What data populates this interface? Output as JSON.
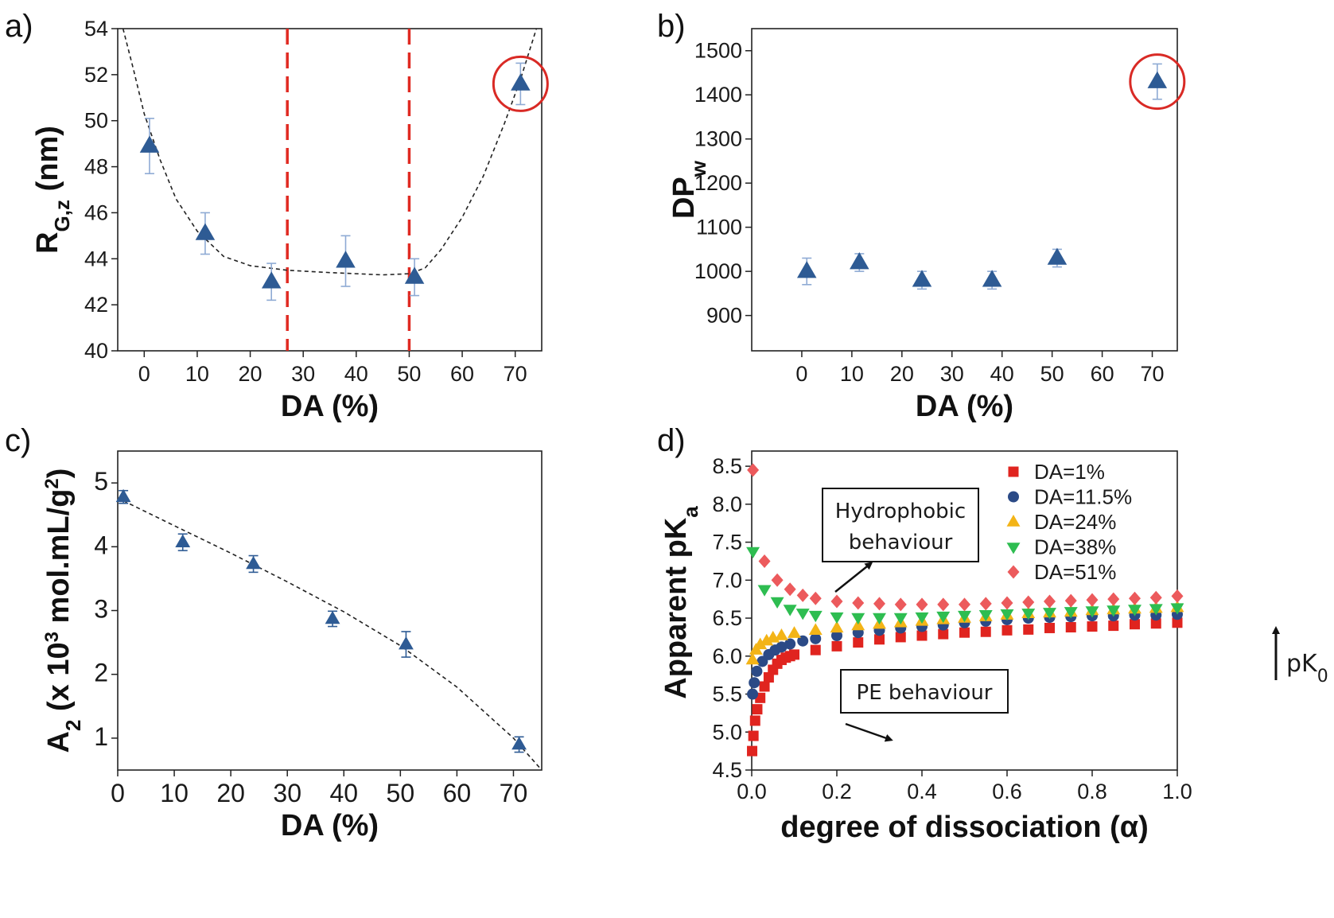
{
  "chart_data": [
    {
      "panel": "a)",
      "type": "scatter",
      "xlabel": "DA (%)",
      "ylabel_main": "R",
      "ylabel_sub": "G,z",
      "ylabel_suffix": " (nm)",
      "xlim": [
        -5,
        75
      ],
      "ylim": [
        40,
        54
      ],
      "xticks": [
        0,
        10,
        20,
        30,
        40,
        50,
        60,
        70
      ],
      "yticks": [
        40,
        42,
        44,
        46,
        48,
        50,
        52,
        54
      ],
      "points": [
        {
          "x": 1,
          "y": 48.9,
          "err": 1.2
        },
        {
          "x": 11.5,
          "y": 45.1,
          "err": 0.9
        },
        {
          "x": 24,
          "y": 43.0,
          "err": 0.8
        },
        {
          "x": 38,
          "y": 43.9,
          "err": 1.1
        },
        {
          "x": 51,
          "y": 43.2,
          "err": 0.8
        },
        {
          "x": 71,
          "y": 51.6,
          "err": 0.9
        }
      ],
      "fit_curve": [
        [
          -4,
          54
        ],
        [
          -2,
          52.2
        ],
        [
          0,
          50.3
        ],
        [
          3,
          48.3
        ],
        [
          6,
          46.6
        ],
        [
          10,
          45.2
        ],
        [
          15,
          44.1
        ],
        [
          20,
          43.7
        ],
        [
          27,
          43.5
        ],
        [
          35,
          43.4
        ],
        [
          45,
          43.3
        ],
        [
          50,
          43.35
        ],
        [
          53,
          43.6
        ],
        [
          56,
          44.4
        ],
        [
          60,
          45.8
        ],
        [
          64,
          47.6
        ],
        [
          68,
          49.9
        ],
        [
          71,
          51.8
        ],
        [
          74,
          54
        ]
      ],
      "dashed_vlines": [
        27,
        50
      ],
      "highlight_circle": {
        "x": 71,
        "y": 51.6
      },
      "colors": {
        "marker": "#2e5b94",
        "errorbar": "#8eaad4",
        "vline": "#e02a22",
        "circle": "#d92a25",
        "fit": "#222222"
      }
    },
    {
      "panel": "b)",
      "type": "scatter",
      "xlabel": "DA (%)",
      "ylabel_main": "DP",
      "ylabel_sub": "w",
      "ylabel_suffix": "",
      "xlim": [
        -10,
        75
      ],
      "ylim": [
        820,
        1550
      ],
      "xticks": [
        0,
        10,
        20,
        30,
        40,
        50,
        60,
        70
      ],
      "yticks": [
        900,
        1000,
        1100,
        1200,
        1300,
        1400,
        1500
      ],
      "points": [
        {
          "x": 1,
          "y": 1000,
          "err": 30
        },
        {
          "x": 11.5,
          "y": 1020,
          "err": 20
        },
        {
          "x": 24,
          "y": 980,
          "err": 20
        },
        {
          "x": 38,
          "y": 980,
          "err": 20
        },
        {
          "x": 51,
          "y": 1030,
          "err": 20
        },
        {
          "x": 71,
          "y": 1430,
          "err": 40
        }
      ],
      "highlight_circle": {
        "x": 71,
        "y": 1430
      },
      "colors": {
        "marker": "#2e5b94",
        "errorbar": "#8eaad4",
        "circle": "#d92a25"
      }
    },
    {
      "panel": "c)",
      "type": "scatter",
      "xlabel": "DA (%)",
      "ylabel_main": "A",
      "ylabel_sub": "2",
      "ylabel_mid": " (x 10",
      "ylabel_sup": "3",
      "ylabel_end": " mol.mL/g",
      "ylabel_sup2": "2",
      "ylabel_close": ")",
      "xlim": [
        0,
        75
      ],
      "ylim": [
        0.5,
        5.5
      ],
      "xticks": [
        0,
        10,
        20,
        30,
        40,
        50,
        60,
        70
      ],
      "yticks": [
        1,
        2,
        3,
        4,
        5
      ],
      "points": [
        {
          "x": 1,
          "y": 4.78,
          "err": 0.1
        },
        {
          "x": 11.5,
          "y": 4.07,
          "err": 0.13
        },
        {
          "x": 24,
          "y": 3.73,
          "err": 0.13
        },
        {
          "x": 38,
          "y": 2.87,
          "err": 0.12
        },
        {
          "x": 51,
          "y": 2.47,
          "err": 0.2
        },
        {
          "x": 71,
          "y": 0.9,
          "err": 0.12
        }
      ],
      "fit_curve": [
        [
          1,
          4.72
        ],
        [
          10,
          4.33
        ],
        [
          20,
          3.9
        ],
        [
          30,
          3.45
        ],
        [
          40,
          2.98
        ],
        [
          50,
          2.45
        ],
        [
          60,
          1.8
        ],
        [
          70,
          1.0
        ],
        [
          75,
          0.5
        ]
      ],
      "colors": {
        "marker": "#2e5b94",
        "errorbar": "#2e5b94",
        "fit": "#222222"
      }
    },
    {
      "panel": "d)",
      "type": "scatter",
      "xlabel": "degree of dissociation (α)",
      "ylabel_main": "Apparent pK",
      "ylabel_sub": "a",
      "xlim": [
        0,
        1.0
      ],
      "ylim": [
        4.5,
        8.7
      ],
      "xticks": [
        0.0,
        0.2,
        0.4,
        0.6,
        0.8,
        1.0
      ],
      "xticklabels": [
        "0.0",
        "0.2",
        "0.4",
        "0.6",
        "0.8",
        "1.0"
      ],
      "yticks": [
        4.5,
        5.0,
        5.5,
        6.0,
        6.5,
        7.0,
        7.5,
        8.0,
        8.5
      ],
      "yticklabels": [
        "4.5",
        "5.0",
        "5.5",
        "6.0",
        "6.5",
        "7.0",
        "7.5",
        "8.0",
        "8.5"
      ],
      "series": [
        {
          "name": "DA=1%",
          "marker": "square",
          "color": "#e0241f",
          "points": [
            [
              0.001,
              4.75
            ],
            [
              0.004,
              4.95
            ],
            [
              0.008,
              5.15
            ],
            [
              0.013,
              5.3
            ],
            [
              0.02,
              5.45
            ],
            [
              0.03,
              5.6
            ],
            [
              0.04,
              5.72
            ],
            [
              0.05,
              5.82
            ],
            [
              0.06,
              5.9
            ],
            [
              0.07,
              5.95
            ],
            [
              0.08,
              5.98
            ],
            [
              0.09,
              6.0
            ],
            [
              0.1,
              6.02
            ],
            [
              0.15,
              6.08
            ],
            [
              0.2,
              6.13
            ],
            [
              0.25,
              6.18
            ],
            [
              0.3,
              6.22
            ],
            [
              0.35,
              6.25
            ],
            [
              0.4,
              6.27
            ],
            [
              0.45,
              6.29
            ],
            [
              0.5,
              6.31
            ],
            [
              0.55,
              6.32
            ],
            [
              0.6,
              6.34
            ],
            [
              0.65,
              6.35
            ],
            [
              0.7,
              6.37
            ],
            [
              0.75,
              6.38
            ],
            [
              0.8,
              6.39
            ],
            [
              0.85,
              6.4
            ],
            [
              0.9,
              6.42
            ],
            [
              0.95,
              6.43
            ],
            [
              1.0,
              6.44
            ]
          ]
        },
        {
          "name": "DA=11.5%",
          "marker": "circle",
          "color": "#2b4a86",
          "points": [
            [
              0.002,
              5.5
            ],
            [
              0.006,
              5.65
            ],
            [
              0.012,
              5.8
            ],
            [
              0.025,
              5.93
            ],
            [
              0.04,
              6.02
            ],
            [
              0.055,
              6.08
            ],
            [
              0.07,
              6.12
            ],
            [
              0.09,
              6.16
            ],
            [
              0.12,
              6.2
            ],
            [
              0.15,
              6.23
            ],
            [
              0.2,
              6.27
            ],
            [
              0.25,
              6.31
            ],
            [
              0.3,
              6.34
            ],
            [
              0.35,
              6.37
            ],
            [
              0.4,
              6.39
            ],
            [
              0.45,
              6.41
            ],
            [
              0.5,
              6.44
            ],
            [
              0.55,
              6.46
            ],
            [
              0.6,
              6.48
            ],
            [
              0.65,
              6.5
            ],
            [
              0.7,
              6.51
            ],
            [
              0.75,
              6.52
            ],
            [
              0.8,
              6.53
            ],
            [
              0.85,
              6.53
            ],
            [
              0.9,
              6.54
            ],
            [
              0.95,
              6.54
            ],
            [
              1.0,
              6.55
            ]
          ]
        },
        {
          "name": "DA=24%",
          "marker": "triangle-up",
          "color": "#f3b417",
          "points": [
            [
              0.002,
              5.95
            ],
            [
              0.01,
              6.08
            ],
            [
              0.02,
              6.15
            ],
            [
              0.035,
              6.2
            ],
            [
              0.05,
              6.24
            ],
            [
              0.07,
              6.27
            ],
            [
              0.1,
              6.3
            ],
            [
              0.15,
              6.34
            ],
            [
              0.2,
              6.37
            ],
            [
              0.25,
              6.4
            ],
            [
              0.3,
              6.42
            ],
            [
              0.35,
              6.44
            ],
            [
              0.4,
              6.46
            ],
            [
              0.45,
              6.48
            ],
            [
              0.5,
              6.5
            ],
            [
              0.55,
              6.52
            ],
            [
              0.6,
              6.54
            ],
            [
              0.65,
              6.56
            ],
            [
              0.7,
              6.57
            ],
            [
              0.75,
              6.58
            ],
            [
              0.8,
              6.6
            ],
            [
              0.85,
              6.61
            ],
            [
              0.9,
              6.62
            ],
            [
              0.95,
              6.63
            ],
            [
              1.0,
              6.64
            ]
          ]
        },
        {
          "name": "DA=38%",
          "marker": "triangle-down",
          "color": "#2ebd51",
          "points": [
            [
              0.003,
              7.38
            ],
            [
              0.03,
              6.88
            ],
            [
              0.06,
              6.72
            ],
            [
              0.09,
              6.62
            ],
            [
              0.12,
              6.57
            ],
            [
              0.15,
              6.54
            ],
            [
              0.2,
              6.52
            ],
            [
              0.25,
              6.51
            ],
            [
              0.3,
              6.51
            ],
            [
              0.35,
              6.51
            ],
            [
              0.4,
              6.52
            ],
            [
              0.45,
              6.53
            ],
            [
              0.5,
              6.54
            ],
            [
              0.55,
              6.55
            ],
            [
              0.6,
              6.56
            ],
            [
              0.65,
              6.57
            ],
            [
              0.7,
              6.58
            ],
            [
              0.75,
              6.59
            ],
            [
              0.8,
              6.6
            ],
            [
              0.85,
              6.61
            ],
            [
              0.9,
              6.62
            ],
            [
              0.95,
              6.63
            ],
            [
              1.0,
              6.64
            ]
          ]
        },
        {
          "name": "DA=51%",
          "marker": "diamond",
          "color": "#ec5a5c",
          "points": [
            [
              0.003,
              8.45
            ],
            [
              0.03,
              7.25
            ],
            [
              0.06,
              7.0
            ],
            [
              0.09,
              6.88
            ],
            [
              0.12,
              6.8
            ],
            [
              0.15,
              6.76
            ],
            [
              0.2,
              6.72
            ],
            [
              0.25,
              6.7
            ],
            [
              0.3,
              6.69
            ],
            [
              0.35,
              6.68
            ],
            [
              0.4,
              6.68
            ],
            [
              0.45,
              6.68
            ],
            [
              0.5,
              6.68
            ],
            [
              0.55,
              6.69
            ],
            [
              0.6,
              6.7
            ],
            [
              0.65,
              6.71
            ],
            [
              0.7,
              6.72
            ],
            [
              0.75,
              6.73
            ],
            [
              0.8,
              6.74
            ],
            [
              0.85,
              6.75
            ],
            [
              0.9,
              6.76
            ],
            [
              0.95,
              6.77
            ],
            [
              1.0,
              6.79
            ]
          ]
        }
      ],
      "annotations": {
        "hydrophobic_line1": "Hydrophobic",
        "hydrophobic_line2": "behaviour",
        "pe": "PE behaviour",
        "pk0_main": "pK",
        "pk0_sub": "0"
      }
    }
  ]
}
